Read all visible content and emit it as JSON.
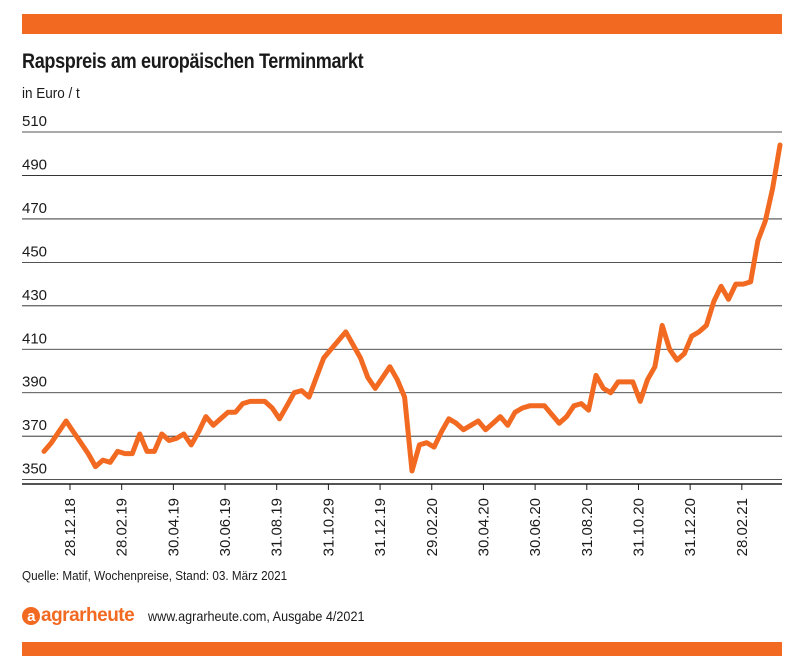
{
  "header": {
    "title": "Rapspreis am europäischen Terminmarkt",
    "unit": "in Euro / t"
  },
  "footer": {
    "source": "Quelle: Matif, Wochenpreise, Stand: 03. März 2021",
    "logo": "agrarheute",
    "website": "www.agrarheute.com,",
    "issue": "Ausgabe 4/2021"
  },
  "colors": {
    "accent": "#f26a21",
    "grid": "#1a1a1a"
  },
  "chart_data": {
    "type": "line",
    "title": "Rapspreis am europäischen Terminmarkt",
    "ylabel": "in Euro / t",
    "xlabel": "",
    "ylim": [
      348,
      510
    ],
    "yticks": [
      350,
      370,
      390,
      410,
      430,
      450,
      470,
      490,
      510
    ],
    "x_ticks": [
      "28.12.18",
      "28.02.19",
      "30.04.19",
      "30.06.19",
      "31.08.19",
      "31.10.29",
      "31.12.19",
      "29.02.20",
      "30.04.20",
      "30.06.20",
      "31.08.20",
      "31.10.20",
      "31.12.20",
      "28.02.21"
    ],
    "grid": true,
    "series": [
      {
        "values": [
          363,
          367,
          372,
          377,
          372,
          367,
          362,
          356,
          359,
          358,
          363,
          362,
          362,
          371,
          363,
          363,
          371,
          368,
          369,
          371,
          366,
          372,
          379,
          375,
          378,
          381,
          381,
          385,
          386,
          386,
          386,
          383,
          378,
          384,
          390,
          391,
          388,
          397,
          406,
          410,
          414,
          418,
          412,
          406,
          397,
          392,
          397,
          402,
          396,
          388,
          354,
          366,
          367,
          365,
          372,
          378,
          376,
          373,
          375,
          377,
          373,
          376,
          379,
          375,
          381,
          383,
          384,
          384,
          384,
          380,
          376,
          379,
          384,
          385,
          382,
          398,
          392,
          390,
          395,
          395,
          395,
          386,
          396,
          402,
          421,
          410,
          405,
          408,
          416,
          418,
          421,
          432,
          439,
          433,
          440,
          440,
          441,
          460,
          469,
          484,
          504
        ]
      }
    ]
  }
}
